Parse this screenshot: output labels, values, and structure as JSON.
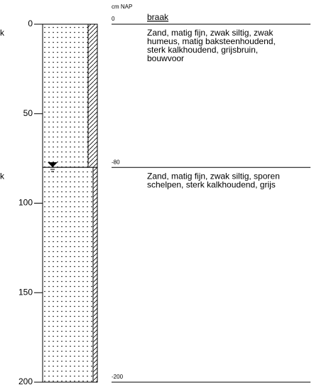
{
  "column_unit": "cm NAP",
  "surface": "braak",
  "depth_axis": {
    "range": [
      0,
      200
    ],
    "ticks": [
      0,
      50,
      100,
      150,
      200
    ]
  },
  "nap_levels": [
    0,
    -80,
    -200
  ],
  "layers": [
    {
      "description": [
        "Zand, matig fijn, zwak siltig, zwak",
        "humeus, matig baksteenhoudend,",
        "sterk kalkhoudend, grijsbruin,",
        "bouwvoor"
      ]
    },
    {
      "description": [
        "Zand, matig fijn, zwak siltig, sporen",
        "schelpen, sterk kalkhoudend, grijs"
      ]
    }
  ],
  "left_fragments": [
    "k",
    "k"
  ]
}
